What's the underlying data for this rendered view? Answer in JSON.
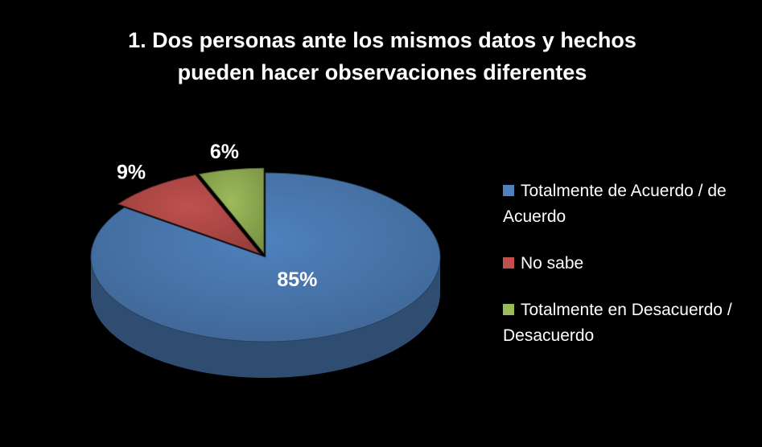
{
  "chart_data": {
    "type": "pie",
    "title": "1. Dos personas ante los mismos datos y hechos pueden hacer observaciones diferentes",
    "categories": [
      "Totalmente de Acuerdo / de Acuerdo",
      "No sabe",
      "Totalmente en Desacuerdo / Desacuerdo"
    ],
    "values": [
      85,
      9,
      6
    ],
    "value_labels": [
      "85%",
      "9%",
      "6%"
    ],
    "colors": [
      "#4f81bd",
      "#c0504d",
      "#9bbb59"
    ],
    "legend": "right"
  }
}
